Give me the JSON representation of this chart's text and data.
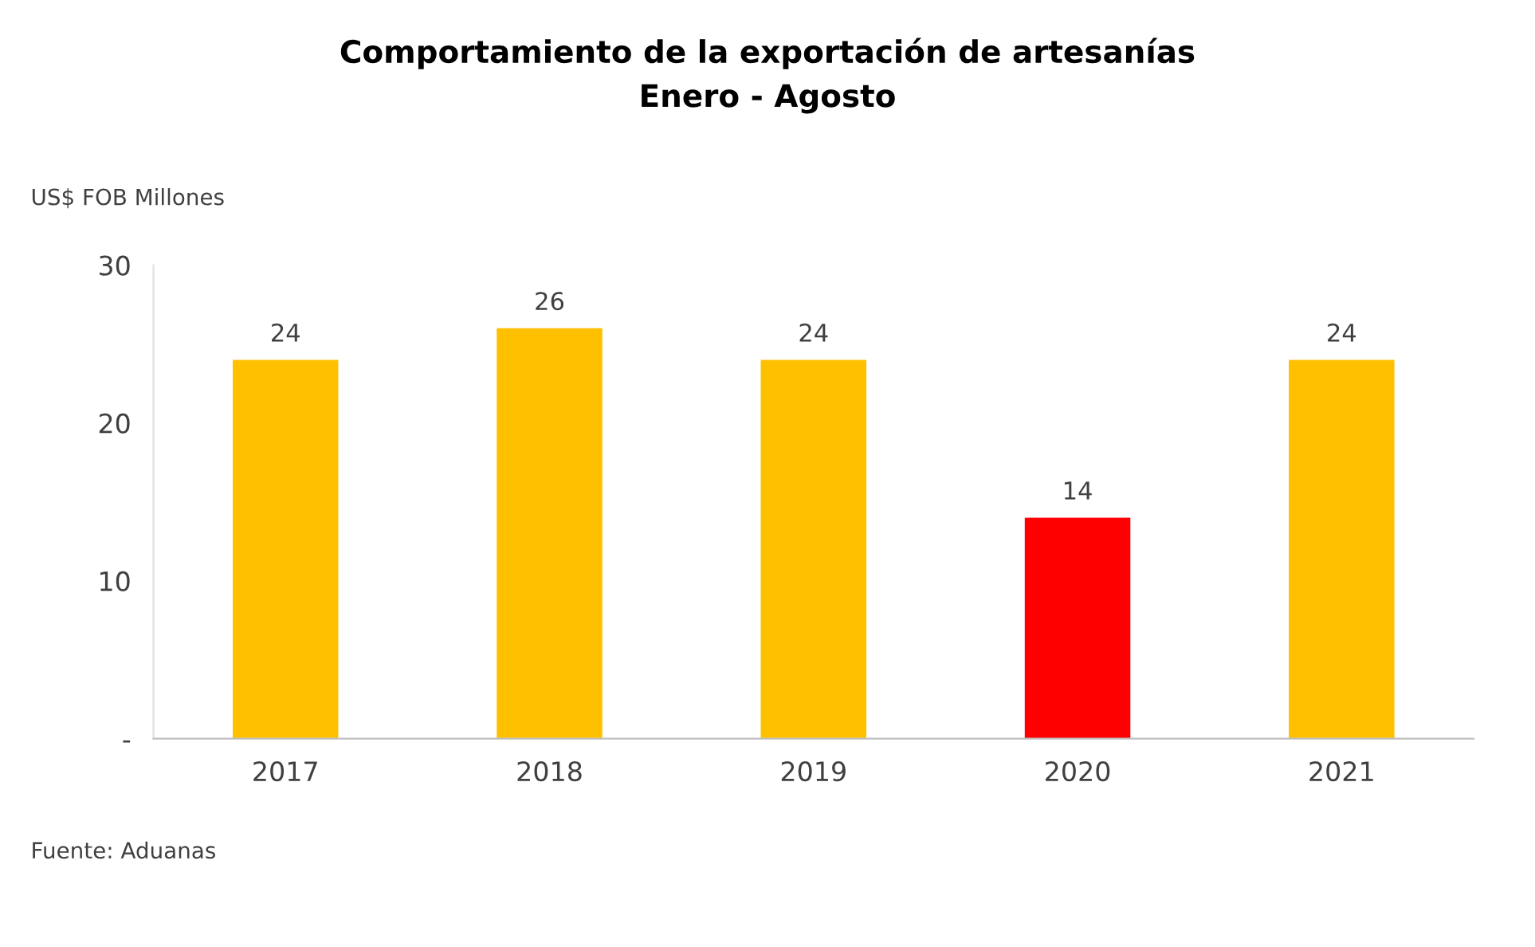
{
  "chart_data": {
    "type": "bar",
    "title": "Comportamiento de la exportación de artesanías\nEnero - Agosto",
    "ylabel": "US$ FOB Millones",
    "categories": [
      "2017",
      "2018",
      "2019",
      "2020",
      "2021"
    ],
    "values": [
      24,
      26,
      24,
      14,
      24
    ],
    "colors": [
      "#ffc000",
      "#ffc000",
      "#ffc000",
      "#ff0000",
      "#ffc000"
    ],
    "ylim": [
      0,
      30
    ],
    "yticks": [
      {
        "value": 0,
        "label": "-"
      },
      10,
      20,
      30
    ],
    "data_labels": true,
    "grid": false,
    "legend": false,
    "annotations": [
      "Fuente: Aduanas"
    ]
  }
}
